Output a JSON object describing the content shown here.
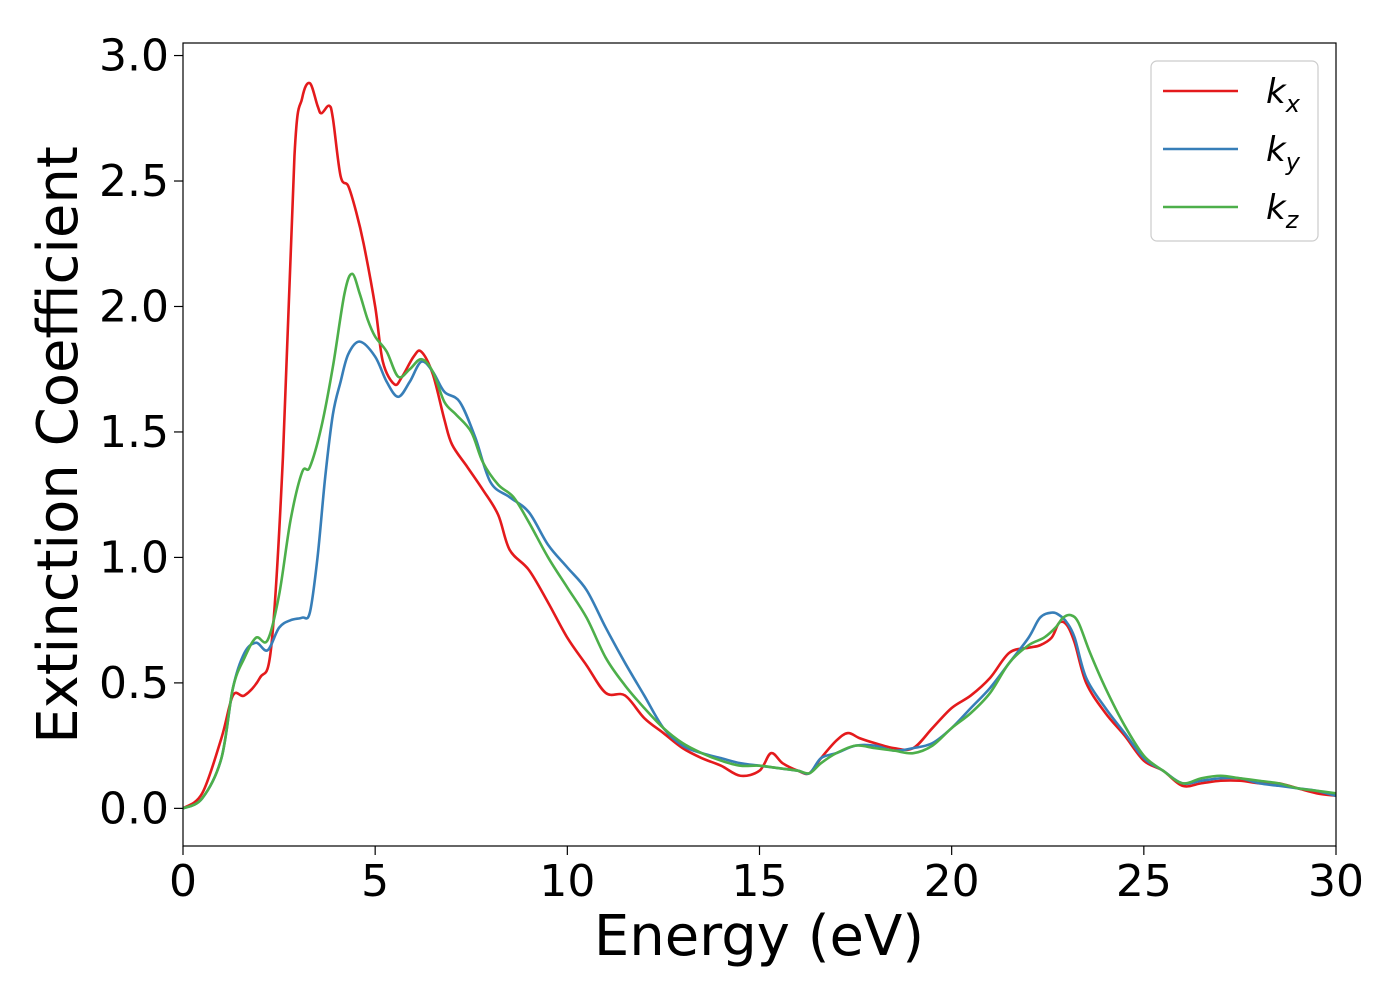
{
  "chart_data": {
    "type": "line",
    "xlabel": "Energy (eV)",
    "ylabel": "Extinction Coefficient",
    "xlim": [
      0,
      30
    ],
    "ylim": [
      -0.15,
      3.05
    ],
    "xticks": [
      0,
      5,
      10,
      15,
      20,
      25,
      30
    ],
    "xtick_labels": [
      "0",
      "5",
      "10",
      "15",
      "20",
      "25",
      "30"
    ],
    "yticks": [
      0.0,
      0.5,
      1.0,
      1.5,
      2.0,
      2.5,
      3.0
    ],
    "ytick_labels": [
      "0.0",
      "0.5",
      "1.0",
      "1.5",
      "2.0",
      "2.5",
      "3.0"
    ],
    "grid": false,
    "legend_position": "top-right",
    "series": [
      {
        "name": "k",
        "subscript": "x",
        "color": "#e41a1c",
        "x": [
          0,
          0.5,
          1,
          1.3,
          1.6,
          2,
          2.3,
          2.6,
          2.9,
          3.1,
          3.3,
          3.5,
          3.6,
          3.8,
          3.9,
          4.1,
          4.3,
          4.5,
          4.7,
          5,
          5.2,
          5.5,
          5.7,
          6,
          6.2,
          6.5,
          6.8,
          7,
          7.4,
          7.8,
          8.2,
          8.5,
          9,
          9.5,
          10,
          10.5,
          11,
          11.5,
          12,
          12.5,
          13,
          13.5,
          14,
          14.5,
          15,
          15.3,
          15.6,
          16,
          16.3,
          16.6,
          17,
          17.3,
          17.6,
          18,
          18.5,
          19,
          19.5,
          20,
          20.5,
          21,
          21.5,
          22,
          22.3,
          22.6,
          22.8,
          23,
          23.2,
          23.5,
          24,
          24.5,
          25,
          25.5,
          26,
          26.5,
          27,
          27.5,
          28,
          28.5,
          29,
          29.5,
          30
        ],
        "y": [
          0,
          0.06,
          0.28,
          0.45,
          0.45,
          0.52,
          0.65,
          1.4,
          2.6,
          2.83,
          2.89,
          2.8,
          2.77,
          2.8,
          2.75,
          2.52,
          2.48,
          2.38,
          2.25,
          2.0,
          1.78,
          1.69,
          1.72,
          1.8,
          1.82,
          1.73,
          1.55,
          1.45,
          1.36,
          1.27,
          1.17,
          1.03,
          0.95,
          0.82,
          0.68,
          0.57,
          0.46,
          0.45,
          0.36,
          0.3,
          0.24,
          0.2,
          0.17,
          0.13,
          0.15,
          0.22,
          0.18,
          0.15,
          0.14,
          0.2,
          0.27,
          0.3,
          0.28,
          0.26,
          0.24,
          0.24,
          0.32,
          0.4,
          0.45,
          0.52,
          0.62,
          0.64,
          0.65,
          0.68,
          0.74,
          0.73,
          0.66,
          0.5,
          0.38,
          0.29,
          0.19,
          0.15,
          0.09,
          0.1,
          0.11,
          0.11,
          0.1,
          0.1,
          0.08,
          0.06,
          0.05
        ]
      },
      {
        "name": "k",
        "subscript": "y",
        "color": "#377eb8",
        "x": [
          0,
          0.5,
          1,
          1.3,
          1.6,
          1.9,
          2.2,
          2.5,
          2.8,
          3.1,
          3.3,
          3.5,
          3.7,
          3.9,
          4.1,
          4.3,
          4.6,
          5,
          5.3,
          5.6,
          5.9,
          6.2,
          6.5,
          6.8,
          7.2,
          7.6,
          8,
          8.5,
          9,
          9.5,
          10,
          10.5,
          11,
          11.5,
          12,
          12.5,
          13,
          13.5,
          14,
          14.5,
          15,
          15.5,
          16,
          16.3,
          16.6,
          17,
          17.5,
          18,
          18.5,
          19,
          19.5,
          20,
          20.5,
          21,
          21.5,
          22,
          22.3,
          22.6,
          22.8,
          23,
          23.2,
          23.5,
          24,
          24.5,
          25,
          25.5,
          26,
          26.5,
          27,
          27.5,
          28,
          28.5,
          29,
          29.5,
          30
        ],
        "y": [
          0,
          0.04,
          0.2,
          0.48,
          0.62,
          0.66,
          0.63,
          0.72,
          0.75,
          0.76,
          0.78,
          1.0,
          1.32,
          1.57,
          1.7,
          1.81,
          1.86,
          1.8,
          1.7,
          1.64,
          1.7,
          1.78,
          1.74,
          1.66,
          1.62,
          1.48,
          1.3,
          1.24,
          1.18,
          1.05,
          0.96,
          0.87,
          0.72,
          0.58,
          0.45,
          0.32,
          0.25,
          0.22,
          0.2,
          0.18,
          0.17,
          0.16,
          0.15,
          0.14,
          0.2,
          0.22,
          0.25,
          0.25,
          0.23,
          0.24,
          0.26,
          0.32,
          0.4,
          0.48,
          0.58,
          0.68,
          0.76,
          0.78,
          0.77,
          0.74,
          0.68,
          0.52,
          0.4,
          0.3,
          0.2,
          0.15,
          0.1,
          0.11,
          0.12,
          0.12,
          0.1,
          0.09,
          0.08,
          0.07,
          0.05
        ]
      },
      {
        "name": "k",
        "subscript": "z",
        "color": "#4daf4a",
        "x": [
          0,
          0.5,
          1,
          1.3,
          1.6,
          1.9,
          2.2,
          2.5,
          2.8,
          3.1,
          3.3,
          3.6,
          3.9,
          4.2,
          4.4,
          4.6,
          4.8,
          5,
          5.3,
          5.6,
          5.9,
          6.2,
          6.5,
          6.8,
          7.1,
          7.5,
          7.8,
          8.2,
          8.6,
          9,
          9.5,
          10,
          10.5,
          11,
          11.5,
          12,
          12.5,
          13,
          13.5,
          14,
          14.5,
          15,
          15.5,
          16,
          16.3,
          16.6,
          17,
          17.5,
          18,
          18.5,
          19,
          19.5,
          20,
          20.5,
          21,
          21.5,
          22,
          22.4,
          22.7,
          22.9,
          23.1,
          23.3,
          23.6,
          24,
          24.5,
          25,
          25.5,
          26,
          26.5,
          27,
          27.5,
          28,
          28.5,
          29,
          29.5,
          30
        ],
        "y": [
          0,
          0.04,
          0.2,
          0.48,
          0.6,
          0.68,
          0.67,
          0.85,
          1.15,
          1.34,
          1.36,
          1.52,
          1.76,
          2.05,
          2.13,
          2.05,
          1.95,
          1.88,
          1.82,
          1.72,
          1.75,
          1.79,
          1.74,
          1.62,
          1.57,
          1.5,
          1.38,
          1.29,
          1.24,
          1.14,
          1.0,
          0.88,
          0.76,
          0.6,
          0.49,
          0.4,
          0.32,
          0.26,
          0.22,
          0.19,
          0.17,
          0.17,
          0.16,
          0.15,
          0.14,
          0.18,
          0.22,
          0.25,
          0.24,
          0.23,
          0.22,
          0.25,
          0.32,
          0.38,
          0.46,
          0.58,
          0.65,
          0.68,
          0.72,
          0.76,
          0.77,
          0.74,
          0.62,
          0.48,
          0.33,
          0.21,
          0.15,
          0.1,
          0.12,
          0.13,
          0.12,
          0.11,
          0.1,
          0.08,
          0.07,
          0.06
        ]
      }
    ]
  }
}
